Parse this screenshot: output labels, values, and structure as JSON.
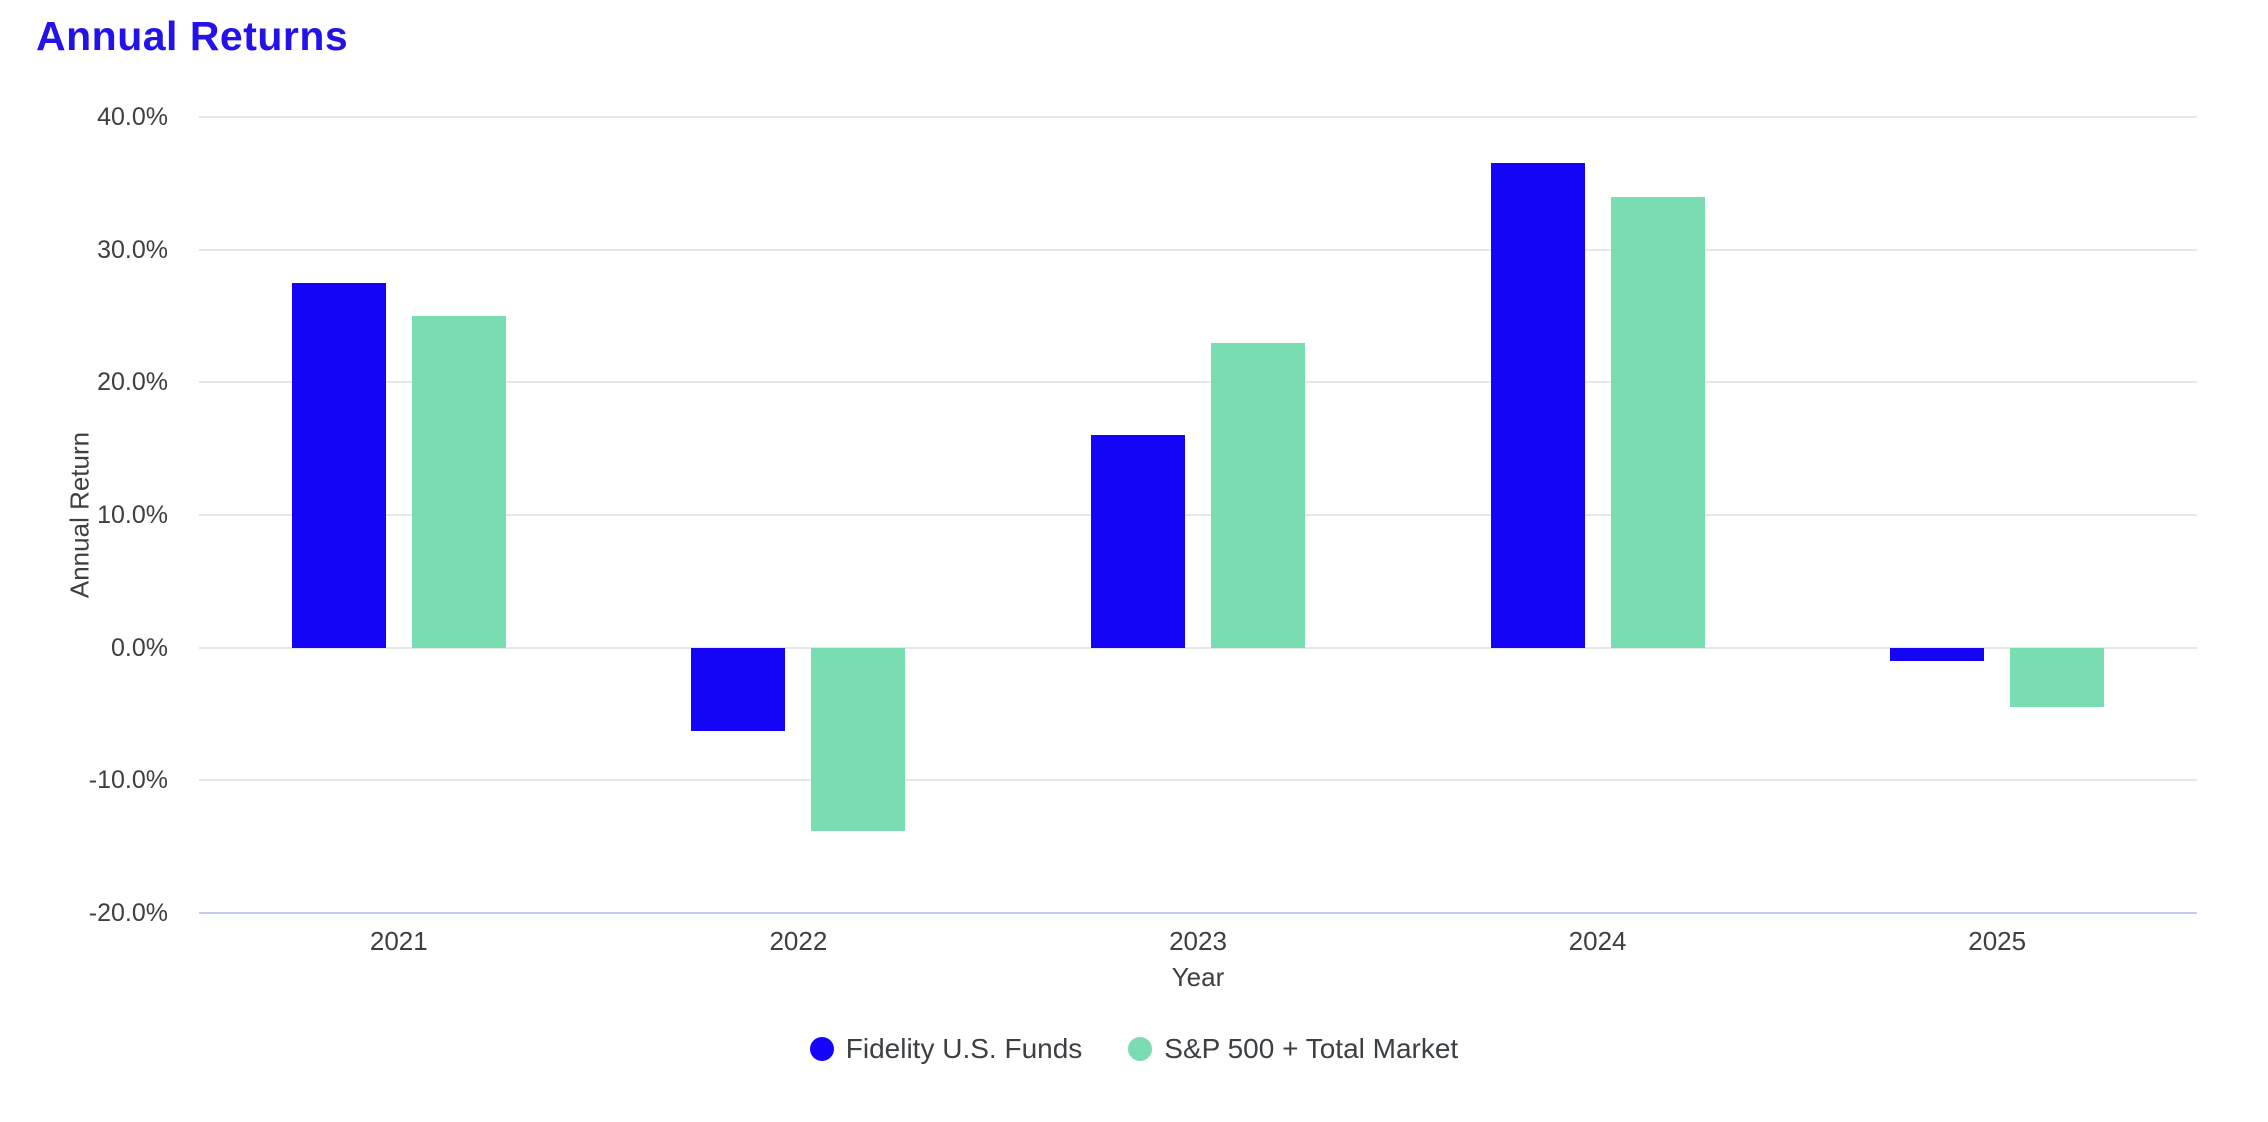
{
  "chart_data": {
    "type": "bar",
    "title": "Annual Returns",
    "xlabel": "Year",
    "ylabel": "Annual Return",
    "categories": [
      "2021",
      "2022",
      "2023",
      "2024",
      "2025"
    ],
    "series": [
      {
        "name": "Fidelity U.S. Funds",
        "color": "#1505f6",
        "values": [
          27.5,
          -6.3,
          16.0,
          36.5,
          -1.0
        ]
      },
      {
        "name": "S&P 500 + Total Market",
        "color": "#7adcb1",
        "values": [
          25.0,
          -13.8,
          23.0,
          34.0,
          -4.5
        ]
      }
    ],
    "ylim": [
      -20,
      40
    ],
    "yticks": [
      {
        "value": 40,
        "label": "40.0%"
      },
      {
        "value": 30,
        "label": "30.0%"
      },
      {
        "value": 20,
        "label": "20.0%"
      },
      {
        "value": 10,
        "label": "10.0%"
      },
      {
        "value": 0,
        "label": "0.0%"
      },
      {
        "value": -10,
        "label": "-10.0%"
      },
      {
        "value": -20,
        "label": "-20.0%"
      }
    ],
    "grid": true,
    "legend_position": "bottom"
  },
  "colors": {
    "background": "#ffffff",
    "title_text": "#2312e9",
    "axis_label_text": "#3c4043",
    "gridline": "#e7e7e7",
    "axis_line": "#c4cce9"
  }
}
